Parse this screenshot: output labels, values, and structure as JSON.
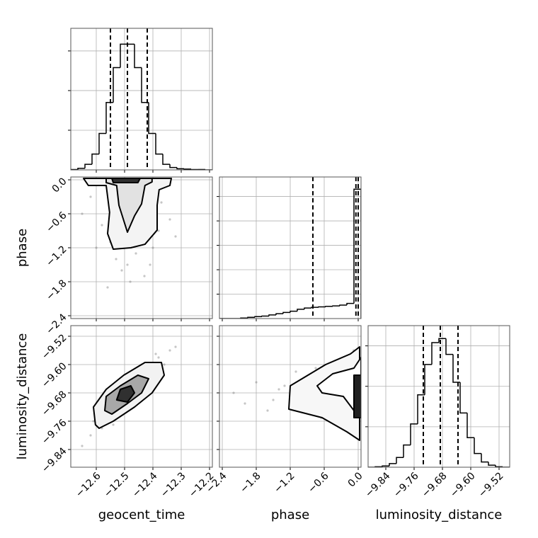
{
  "chart_data": {
    "type": "corner",
    "grid": true,
    "color": "#000000",
    "point_color": "#808080",
    "parameters": [
      {
        "label": "geocent_time",
        "lim": [
          -12.69,
          -12.19
        ],
        "ticks": [
          {
            "value": -12.6,
            "label": "−12.6"
          },
          {
            "value": -12.5,
            "label": "−12.5"
          },
          {
            "value": -12.4,
            "label": "−12.4"
          },
          {
            "value": -12.3,
            "label": "−12.3"
          },
          {
            "value": -12.2,
            "label": "−12.2"
          }
        ]
      },
      {
        "label": "phase",
        "lim": [
          -2.45,
          0.05
        ],
        "ticks": [
          {
            "value": -2.4,
            "label": "−2.4"
          },
          {
            "value": -1.8,
            "label": "−1.8"
          },
          {
            "value": -1.2,
            "label": "−1.2"
          },
          {
            "value": -0.6,
            "label": "−0.6"
          },
          {
            "value": 0.0,
            "label": "0.0"
          }
        ]
      },
      {
        "label": "luminosity_distance",
        "lim": [
          -9.89,
          -9.49
        ],
        "ticks": [
          {
            "value": -9.84,
            "label": "−9.84"
          },
          {
            "value": -9.76,
            "label": "−9.76"
          },
          {
            "value": -9.68,
            "label": "−9.68"
          },
          {
            "value": -9.6,
            "label": "−9.60"
          },
          {
            "value": -9.52,
            "label": "−9.52"
          }
        ]
      }
    ],
    "histograms": [
      {
        "bins": [
          -12.69,
          -12.665,
          -12.64,
          -12.615,
          -12.59,
          -12.565,
          -12.54,
          -12.515,
          -12.49,
          -12.465,
          -12.44,
          -12.415,
          -12.39,
          -12.365,
          -12.34,
          -12.315,
          -12.29,
          -12.265,
          -12.24,
          -12.215,
          -12.19
        ],
        "counts": [
          0.01,
          0.04,
          0.14,
          0.4,
          0.92,
          1.7,
          2.58,
          3.17,
          3.17,
          2.58,
          1.7,
          0.92,
          0.4,
          0.14,
          0.06,
          0.03,
          0.02,
          0.01,
          0.01,
          0
        ],
        "ylim": [
          0,
          3.57
        ],
        "yticks": [
          1,
          2,
          3
        ],
        "quantiles": [
          -12.55,
          -12.49,
          -12.42
        ]
      },
      {
        "bins": [
          -2.45,
          -2.325,
          -2.2,
          -2.075,
          -1.95,
          -1.825,
          -1.7,
          -1.575,
          -1.45,
          -1.325,
          -1.2,
          -1.075,
          -0.95,
          -0.825,
          -0.7,
          -0.575,
          -0.45,
          -0.325,
          -0.2,
          -0.075,
          0.05
        ],
        "counts": [
          0,
          0,
          0,
          0.02,
          0.05,
          0.08,
          0.1,
          0.15,
          0.2,
          0.25,
          0.3,
          0.38,
          0.43,
          0.46,
          0.48,
          0.5,
          0.52,
          0.55,
          0.62,
          5.3
        ],
        "ylim": [
          0,
          5.8
        ],
        "yticks": [
          1,
          2,
          3,
          4,
          5
        ],
        "quantiles": [
          -0.8,
          -0.04,
          0.0
        ]
      },
      {
        "bins": [
          -9.89,
          -9.87,
          -9.85,
          -9.83,
          -9.81,
          -9.79,
          -9.77,
          -9.75,
          -9.73,
          -9.71,
          -9.69,
          -9.67,
          -9.65,
          -9.63,
          -9.61,
          -9.59,
          -9.57,
          -9.55,
          -9.53,
          -9.51,
          -9.49
        ],
        "counts": [
          0,
          0.01,
          0.03,
          0.09,
          0.24,
          0.55,
          1.07,
          1.79,
          2.54,
          3.08,
          3.18,
          2.79,
          2.1,
          1.34,
          0.73,
          0.34,
          0.13,
          0.05,
          0.01,
          0
        ],
        "ylim": [
          0,
          3.5
        ],
        "yticks": [
          1,
          2,
          3
        ],
        "quantiles": [
          -9.734,
          -9.686,
          -9.636
        ]
      }
    ],
    "pairs": [
      {
        "points": {
          "x": [
            -12.62,
            -12.58,
            -12.55,
            -12.53,
            -12.51,
            -12.5,
            -12.48,
            -12.46,
            -12.44,
            -12.42,
            -12.4,
            -12.37,
            -12.34,
            -12.57,
            -12.52,
            -12.49,
            -12.47,
            -12.45,
            -12.43,
            -12.6,
            -12.54,
            -12.5,
            -12.46,
            -12.41,
            -12.38,
            -12.56,
            -12.48,
            -12.44,
            -12.65,
            -12.32
          ],
          "y": [
            -0.3,
            -0.8,
            -1.1,
            -1.4,
            -1.6,
            -0.2,
            -1.8,
            -1.3,
            -0.9,
            -0.5,
            -1.2,
            -0.4,
            -0.7,
            -0.1,
            -0.6,
            -1.5,
            -1.0,
            -0.3,
            -1.7,
            -1.2,
            -0.2,
            -1.1,
            -0.4,
            -1.5,
            -0.9,
            -1.9,
            -0.7,
            -0.05,
            -0.6,
            -1.0
          ]
        },
        "contours": [
          {
            "fill": "#f4f4f4",
            "x": [
              -12.645,
              -12.628,
              -12.565,
              -12.553,
              -12.56,
              -12.54,
              -12.478,
              -12.428,
              -12.385,
              -12.385,
              -12.378,
              -12.34,
              -12.335
            ],
            "y": [
              0.025,
              -0.1,
              -0.1,
              -0.575,
              -0.95,
              -1.225,
              -1.2,
              -1.138,
              -0.888,
              -0.45,
              -0.175,
              -0.1,
              0.025
            ]
          },
          {
            "fill": "#e2e2e2",
            "x": [
              -12.565,
              -12.565,
              -12.528,
              -12.52,
              -12.49,
              -12.465,
              -12.44,
              -12.428,
              -12.403,
              -12.403
            ],
            "y": [
              0.025,
              -0.05,
              -0.1,
              -0.45,
              -0.925,
              -0.638,
              -0.425,
              -0.1,
              -0.038,
              0.025
            ]
          },
          {
            "fill": "#303030",
            "x": [
              -12.545,
              -12.54,
              -12.453,
              -12.445
            ],
            "y": [
              0.025,
              -0.05,
              -0.05,
              0.025
            ]
          }
        ]
      },
      {
        "points": {
          "x": [
            -12.65,
            -12.62,
            -12.6,
            -12.58,
            -12.56,
            -12.55,
            -12.53,
            -12.52,
            -12.5,
            -12.49,
            -12.48,
            -12.46,
            -12.45,
            -12.43,
            -12.42,
            -12.4,
            -12.38,
            -12.36,
            -12.34,
            -12.32,
            -12.61,
            -12.57,
            -12.51,
            -12.47,
            -12.44,
            -12.41,
            -12.37,
            -12.54,
            -12.46,
            -12.39
          ],
          "y": [
            -9.83,
            -9.8,
            -9.77,
            -9.78,
            -9.73,
            -9.74,
            -9.71,
            -9.69,
            -9.7,
            -9.66,
            -9.68,
            -9.64,
            -9.67,
            -9.62,
            -9.63,
            -9.6,
            -9.58,
            -9.6,
            -9.56,
            -9.55,
            -9.76,
            -9.72,
            -9.65,
            -9.7,
            -9.6,
            -9.66,
            -9.61,
            -9.77,
            -9.7,
            -9.57
          ]
        },
        "contours": [
          {
            "fill": "#f2f2f2",
            "x": [
              -12.603,
              -12.61,
              -12.565,
              -12.503,
              -12.428,
              -12.37,
              -12.36,
              -12.403,
              -12.465,
              -12.54,
              -12.59
            ],
            "y": [
              -9.77,
              -9.72,
              -9.67,
              -9.63,
              -9.594,
              -9.594,
              -9.63,
              -9.68,
              -9.72,
              -9.76,
              -9.78
            ]
          },
          {
            "fill": "#a8a8a8",
            "x": [
              -12.57,
              -12.565,
              -12.515,
              -12.453,
              -12.415,
              -12.44,
              -12.49,
              -12.545
            ],
            "y": [
              -9.73,
              -9.69,
              -9.66,
              -9.63,
              -9.64,
              -9.68,
              -9.71,
              -9.74
            ]
          },
          {
            "fill": "#303030",
            "x": [
              -12.528,
              -12.515,
              -12.478,
              -12.465,
              -12.49
            ],
            "y": [
              -9.7,
              -9.67,
              -9.66,
              -9.68,
              -9.706
            ]
          }
        ]
      },
      {
        "points": {
          "x": [
            -0.05,
            -0.1,
            -0.2,
            -0.3,
            -0.4,
            -0.5,
            -0.6,
            -0.7,
            -0.8,
            -0.9,
            -1.0,
            -1.1,
            -1.2,
            -1.4,
            -1.6,
            -1.8,
            -2.0,
            -2.2,
            -0.15,
            -0.25,
            -0.35,
            -0.45,
            -0.55,
            -0.65,
            -0.75,
            -1.3,
            -1.5,
            -0.02,
            -0.08,
            -0.12
          ],
          "y": [
            -9.62,
            -9.74,
            -9.66,
            -9.7,
            -9.6,
            -9.76,
            -9.68,
            -9.64,
            -9.72,
            -9.66,
            -9.7,
            -9.62,
            -9.69,
            -9.67,
            -9.73,
            -9.65,
            -9.71,
            -9.68,
            -9.78,
            -9.58,
            -9.72,
            -9.63,
            -9.69,
            -9.75,
            -9.61,
            -9.66,
            -9.7,
            -9.8,
            -9.56,
            -9.68
          ]
        },
        "contours": [
          {
            "fill": "#f7f7f7",
            "x": [
              0.025,
              -0.138,
              -0.575,
              -1.2,
              -1.225,
              -0.638,
              -0.2,
              0.025
            ],
            "y": [
              -9.55,
              -9.57,
              -9.6,
              -9.66,
              -9.726,
              -9.75,
              -9.79,
              -9.814
            ]
          },
          {
            "fill": "#ffffff",
            "x": [
              0.05,
              -0.075,
              -0.45,
              -0.725,
              -0.638,
              -0.263,
              -0.075,
              0.05
            ],
            "y": [
              -9.58,
              -9.61,
              -9.626,
              -9.66,
              -9.68,
              -9.69,
              -9.73,
              -9.75
            ]
          },
          {
            "fill": "#202020",
            "x": [
              -0.075,
              0.05,
              0.05,
              -0.075
            ],
            "y": [
              -9.63,
              -9.63,
              -9.75,
              -9.75
            ]
          }
        ]
      }
    ]
  }
}
